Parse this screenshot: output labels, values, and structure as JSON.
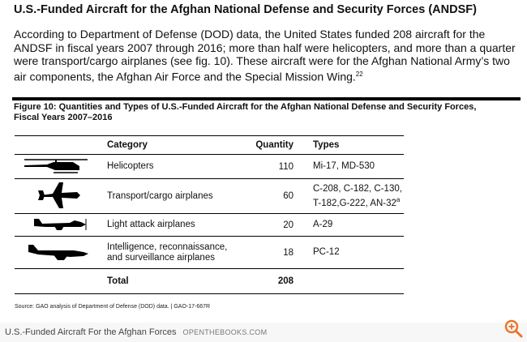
{
  "document": {
    "heading": "U.S.-Funded Aircraft for the Afghan National Defense and Security Forces (ANDSF)",
    "paragraph": {
      "text": "According to Department of Defense (DOD) data, the United States funded 208 aircraft for the ANDSF in fiscal years 2007 through 2016; more than half were helicopters, and more than a quarter were transport/cargo airplanes (see fig. 10). These aircraft were for the Afghan National Army’s two air components, the Afghan Air Force and the Special Mission Wing.",
      "footnote": "22"
    },
    "figure": {
      "title": "Figure 10: Quantities and Types of U.S.-Funded Aircraft for the Afghan National Defense and Security Forces, Fiscal Years 2007–2016",
      "columns": [
        "Category",
        "Quantity",
        "Types"
      ],
      "rows": [
        {
          "category": [
            "Helicopters"
          ],
          "quantity": 110,
          "types": [
            "Mi-17, MD-530"
          ]
        },
        {
          "category": [
            "Transport/cargo airplanes"
          ],
          "quantity": 60,
          "types": [
            "C-208, C-182, C-130,",
            "T-182,G-222, AN-32"
          ],
          "types_note": "a"
        },
        {
          "category": [
            "Light attack airplanes"
          ],
          "quantity": 20,
          "types": [
            "A-29"
          ]
        },
        {
          "category": [
            "Intelligence, reconnaissance,",
            "and surveillance airplanes"
          ],
          "quantity": 18,
          "types": [
            "PC-12"
          ]
        }
      ],
      "total": {
        "label": "Total",
        "quantity": 208
      },
      "source": "Source: GAO analysis of Department of Defense (DOD) data.  |  GAO-17-667R"
    }
  },
  "caption": {
    "title": "U.S.-Funded Aircraft For the Afghan Forces",
    "site": "OPENTHEBOOKS.COM"
  }
}
